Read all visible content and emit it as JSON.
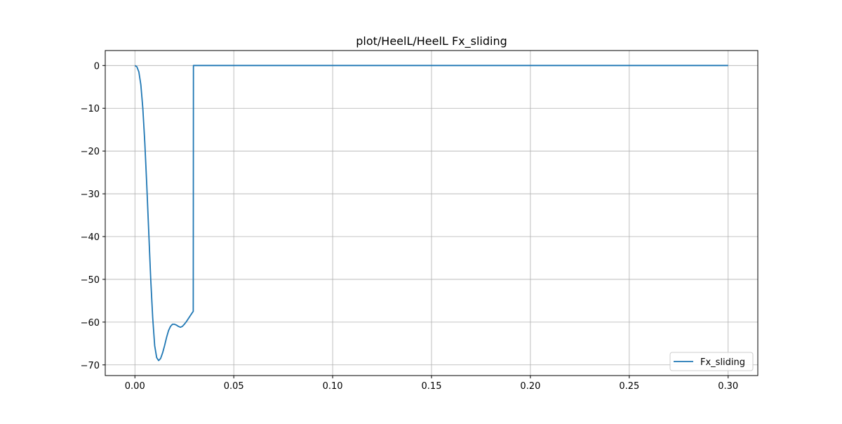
{
  "chart_data": {
    "type": "line",
    "title": "plot/HeelL/HeelL Fx_sliding",
    "xlabel": "",
    "ylabel": "",
    "xlim": [
      -0.015,
      0.315
    ],
    "ylim": [
      -72.5,
      3.5
    ],
    "xticks": [
      0.0,
      0.05,
      0.1,
      0.15,
      0.2,
      0.25,
      0.3
    ],
    "xtick_labels": [
      "0.00",
      "0.05",
      "0.10",
      "0.15",
      "0.20",
      "0.25",
      "0.30"
    ],
    "yticks": [
      0,
      -10,
      -20,
      -30,
      -40,
      -50,
      -60,
      -70
    ],
    "ytick_labels": [
      "0",
      "−10",
      "−20",
      "−30",
      "−40",
      "−50",
      "−60",
      "−70"
    ],
    "grid": true,
    "legend_position": "lower-right",
    "series": [
      {
        "name": "Fx_sliding",
        "color": "#1f77b4",
        "x": [
          0.0,
          0.001,
          0.002,
          0.003,
          0.004,
          0.005,
          0.006,
          0.007,
          0.008,
          0.009,
          0.01,
          0.011,
          0.012,
          0.013,
          0.014,
          0.015,
          0.016,
          0.017,
          0.018,
          0.019,
          0.02,
          0.021,
          0.022,
          0.023,
          0.024,
          0.025,
          0.026,
          0.027,
          0.028,
          0.029,
          0.0295,
          0.0296,
          0.03,
          0.05,
          0.1,
          0.15,
          0.2,
          0.25,
          0.3
        ],
        "y": [
          0,
          -0.3,
          -1.5,
          -4.5,
          -10,
          -18,
          -28,
          -39,
          -50,
          -59,
          -65.5,
          -68.3,
          -69.0,
          -68.5,
          -67.2,
          -65.5,
          -63.6,
          -62.0,
          -61.0,
          -60.5,
          -60.5,
          -60.7,
          -61.0,
          -61.2,
          -61.0,
          -60.5,
          -59.9,
          -59.2,
          -58.5,
          -57.8,
          -57.5,
          0,
          0,
          0,
          0,
          0,
          0,
          0,
          0
        ]
      }
    ]
  }
}
